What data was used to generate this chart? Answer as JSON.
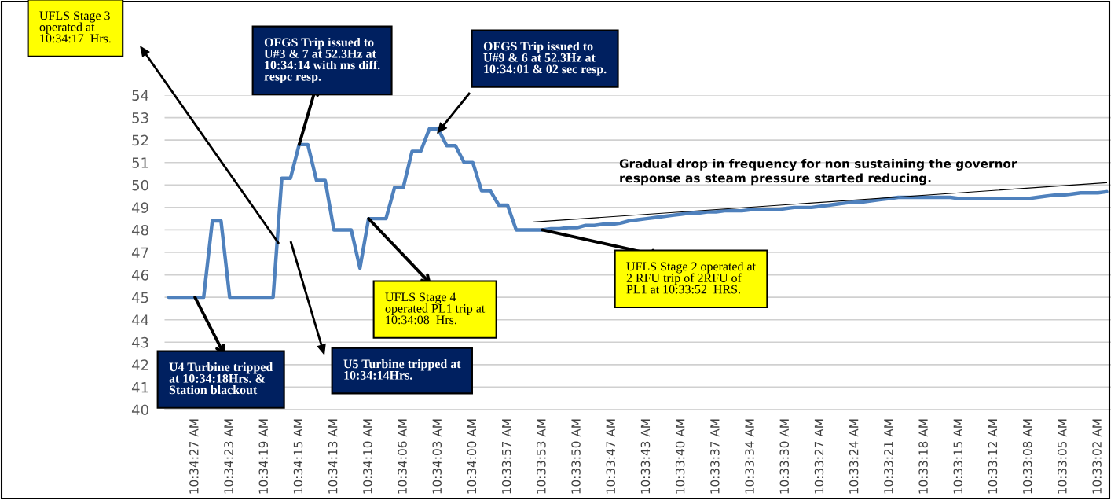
{
  "chart_data": {
    "type": "line",
    "categories": [
      null,
      null,
      null,
      "10:34:27 AM",
      null,
      null,
      null,
      "10:34:23 AM",
      null,
      null,
      null,
      "10:34:19 AM",
      null,
      null,
      null,
      "10:34:15 AM",
      null,
      null,
      null,
      "10:34:13 AM",
      null,
      null,
      null,
      "10:34:10 AM",
      null,
      null,
      null,
      "10:34:06 AM",
      null,
      null,
      null,
      "10:34:03 AM",
      null,
      null,
      null,
      "10:34:00 AM",
      null,
      null,
      null,
      "10:33:57 AM",
      null,
      null,
      null,
      "10:33:53 AM",
      null,
      null,
      null,
      "10:33:50 AM",
      null,
      null,
      null,
      "10:33:47 AM",
      null,
      null,
      null,
      "10:33:43 AM",
      null,
      null,
      null,
      "10:33:40 AM",
      null,
      null,
      null,
      "10:33:37 AM",
      null,
      null,
      null,
      "10:33:34 AM",
      null,
      null,
      null,
      "10:33:30 AM",
      null,
      null,
      null,
      "10:33:27 AM",
      null,
      null,
      null,
      "10:33:24 AM",
      null,
      null,
      null,
      "10:33:21 AM",
      null,
      null,
      null,
      "10:33:18 AM",
      null,
      null,
      null,
      "10:33:15 AM",
      null,
      null,
      null,
      "10:33:12 AM",
      null,
      null,
      null,
      "10:33:08 AM",
      null,
      null,
      null,
      "10:33:05 AM",
      null,
      null,
      null,
      "10:33:02 AM",
      null
    ],
    "series": [
      {
        "color": "#4f81bd",
        "values": [
          45,
          45,
          45,
          45,
          45,
          48.4,
          48.4,
          45,
          45,
          45,
          45,
          45,
          45,
          50.3,
          50.3,
          51.8,
          51.8,
          50.2,
          50.2,
          48,
          48,
          48,
          46.3,
          48.5,
          48.5,
          48.5,
          49.9,
          49.9,
          51.5,
          51.5,
          52.5,
          52.5,
          51.75,
          51.75,
          51,
          51,
          49.75,
          49.75,
          49.1,
          49.1,
          48,
          48,
          48,
          48,
          48.05,
          48.05,
          48.1,
          48.1,
          48.2,
          48.2,
          48.25,
          48.25,
          48.3,
          48.4,
          48.45,
          48.5,
          48.55,
          48.6,
          48.65,
          48.7,
          48.75,
          48.75,
          48.8,
          48.8,
          48.85,
          48.85,
          48.85,
          48.9,
          48.9,
          48.9,
          48.9,
          48.95,
          49,
          49,
          49,
          49.05,
          49.1,
          49.15,
          49.2,
          49.25,
          49.25,
          49.3,
          49.35,
          49.4,
          49.45,
          49.45,
          49.45,
          49.45,
          49.45,
          49.45,
          49.45,
          49.4,
          49.4,
          49.4,
          49.4,
          49.4,
          49.4,
          49.4,
          49.4,
          49.4,
          49.45,
          49.5,
          49.55,
          49.55,
          49.6,
          49.65,
          49.65,
          49.65,
          49.7
        ]
      },
      {
        "color": "#000000",
        "values": [
          null,
          null,
          null,
          null,
          null,
          null,
          null,
          null,
          null,
          null,
          null,
          null,
          null,
          null,
          null,
          null,
          null,
          null,
          null,
          null,
          null,
          null,
          null,
          null,
          null,
          null,
          null,
          null,
          null,
          null,
          null,
          null,
          null,
          null,
          null,
          null,
          null,
          null,
          null,
          null,
          null,
          null,
          48.35,
          null,
          null,
          null,
          null,
          null,
          null,
          null,
          null,
          null,
          null,
          null,
          null,
          null,
          null,
          null,
          null,
          null,
          null,
          null,
          null,
          null,
          null,
          null,
          null,
          null,
          null,
          null,
          null,
          null,
          null,
          null,
          null,
          null,
          null,
          null,
          null,
          null,
          null,
          null,
          null,
          null,
          null,
          null,
          null,
          null,
          null,
          null,
          null,
          null,
          null,
          null,
          null,
          null,
          null,
          null,
          null,
          null,
          null,
          null,
          null,
          null,
          null,
          null,
          null,
          null,
          50.1
        ]
      }
    ],
    "ylim": [
      40,
      54
    ],
    "yticks": [
      40,
      41,
      42,
      43,
      44,
      45,
      46,
      47,
      48,
      49,
      50,
      51,
      52,
      53,
      54
    ],
    "grid": "y",
    "annotations": [
      "UFLS Stage 3\noperated at\n10:34:17  Hrs.",
      {
        "text": "OFGS Trip issued to\nU#3 & 7 at 52.3Hz at\n10:34:14 with ms diff.\nrespc resp.",
        "x": "10:34:15 AM",
        "y": 51.8
      },
      "OFGS Trip issued to\nU#9 & 6 at 52.3Hz at\n10:34:01 & 02 sec resp.",
      "Gradual drop in frequency for non sustaining the governor\nresponse as steam pressure started reducing.",
      {
        "text": "UFLS Stage 2 operated at\n2 RFU trip of 2RFU of\nPL1 at 10:33:52  HRS.",
        "x": "10:33:53 AM",
        "y": 48
      },
      {
        "text": "UFLS Stage 4\noperated PL1 trip at\n10:34:08  Hrs.",
        "x": "10:34:10 AM",
        "y": 48.5
      },
      {
        "text": "U4 Turbine tripped\nat 10:34:18Hrs. &\nStation blackout",
        "x": "10:34:27 AM",
        "y": 45
      },
      "U5 Turbine tripped at\n10:34:14Hrs."
    ]
  }
}
